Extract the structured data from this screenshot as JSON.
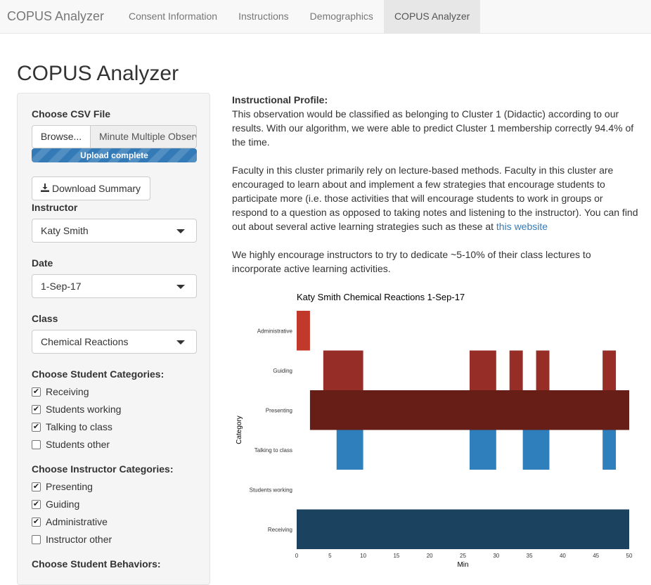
{
  "nav": {
    "brand": "COPUS Analyzer",
    "tabs": [
      {
        "label": "Consent Information",
        "active": false
      },
      {
        "label": "Instructions",
        "active": false
      },
      {
        "label": "Demographics",
        "active": false
      },
      {
        "label": "COPUS Analyzer",
        "active": true
      }
    ]
  },
  "page_title": "COPUS Analyzer",
  "sidebar": {
    "file_label": "Choose CSV File",
    "browse_label": "Browse...",
    "file_name": "Minute Multiple Observations",
    "progress_text": "Upload complete",
    "progress_value": 1.0,
    "download_label": "Download Summary",
    "instructor_label": "Instructor",
    "instructor_value": "Katy Smith",
    "date_label": "Date",
    "date_value": "1-Sep-17",
    "class_label": "Class",
    "class_value": "Chemical Reactions",
    "student_categories_label": "Choose Student Categories:",
    "student_categories": [
      {
        "label": "Receiving",
        "checked": true
      },
      {
        "label": "Students working",
        "checked": true
      },
      {
        "label": "Talking to class",
        "checked": true
      },
      {
        "label": "Students other",
        "checked": false
      }
    ],
    "instructor_categories_label": "Choose Instructor Categories:",
    "instructor_categories": [
      {
        "label": "Presenting",
        "checked": true
      },
      {
        "label": "Guiding",
        "checked": true
      },
      {
        "label": "Administrative",
        "checked": true
      },
      {
        "label": "Instructor other",
        "checked": false
      }
    ],
    "student_behaviors_label": "Choose Student Behaviors:"
  },
  "profile": {
    "heading": "Instructional Profile:",
    "p1": "This observation would be classified as belonging to Cluster 1 (Didactic) according to our results. With our algorithm, we were able to predict Cluster 1 membership correctly 94.4% of the time.",
    "p2_text": "Faculty in this cluster primarily rely on lecture-based methods. Faculty in this cluster are encouraged to learn about and implement a few strategies that encourage students to participate more (i.e. those activities that will encourage students to work in groups or respond to a question as opposed to taking notes and listening to the instructor). You can find out about several active learning strategies such as these at",
    "p2_link": "this website",
    "p3": "We highly encourage instructors to try to dedicate ~5-10% of their class lectures to incorporate active learning activities."
  },
  "chart_data": {
    "type": "bar",
    "title": "Katy Smith Chemical Reactions 1-Sep-17",
    "xlabel": "Min",
    "ylabel": "Category",
    "xlim": [
      0,
      50
    ],
    "xticks": [
      0,
      5,
      10,
      15,
      20,
      25,
      30,
      35,
      40,
      45,
      50
    ],
    "categories": [
      "Administrative",
      "Guiding",
      "Presenting",
      "Talking to class",
      "Students working",
      "Receiving"
    ],
    "series": [
      {
        "category": "Administrative",
        "color": "#c0392b",
        "intervals": [
          [
            0,
            2
          ]
        ]
      },
      {
        "category": "Guiding",
        "color": "#962d26",
        "intervals": [
          [
            4,
            10
          ],
          [
            26,
            30
          ],
          [
            32,
            34
          ],
          [
            36,
            38
          ],
          [
            46,
            48
          ]
        ]
      },
      {
        "category": "Presenting",
        "color": "#671e17",
        "intervals": [
          [
            2,
            50
          ]
        ]
      },
      {
        "category": "Talking to class",
        "color": "#2e7fbb",
        "intervals": [
          [
            6,
            10
          ],
          [
            26,
            30
          ],
          [
            34,
            38
          ],
          [
            46,
            48
          ]
        ]
      },
      {
        "category": "Students working",
        "color": "#2e7fbb",
        "intervals": []
      },
      {
        "category": "Receiving",
        "color": "#1b425f",
        "intervals": [
          [
            0,
            50
          ]
        ]
      }
    ]
  }
}
